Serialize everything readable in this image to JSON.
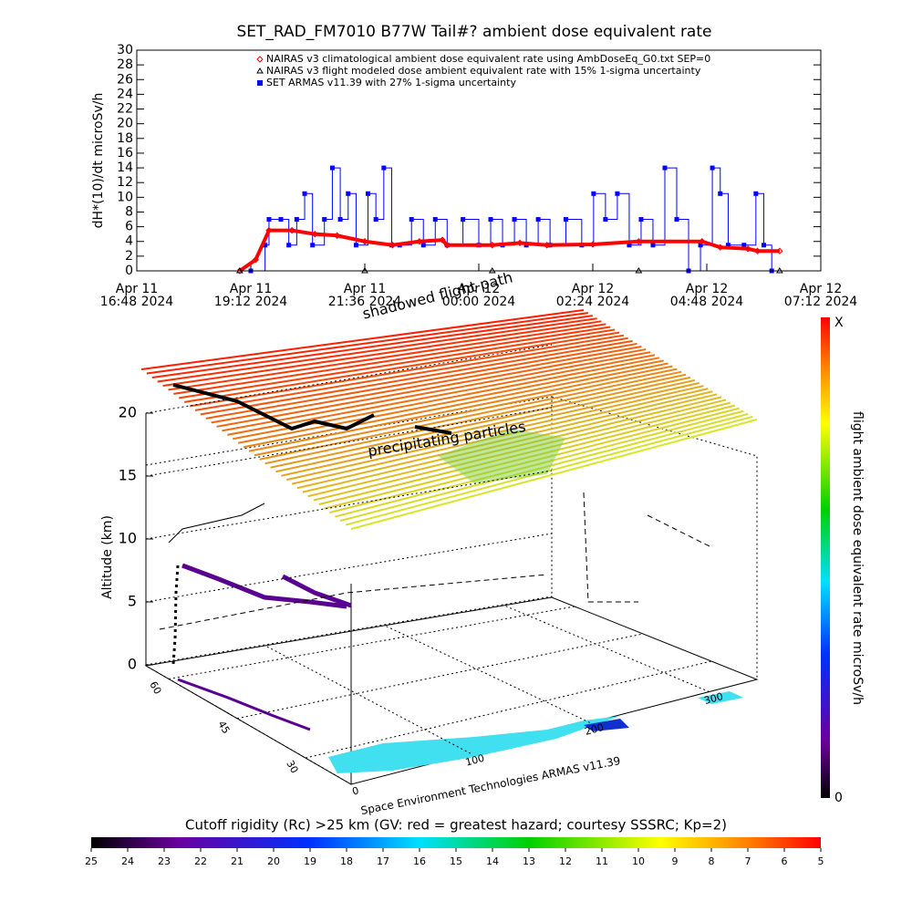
{
  "chart_data": [
    {
      "type": "line",
      "title": "SET_RAD_FM7010  B77W Tail#? ambient dose equivalent rate",
      "y_label": "dH*(10)/dt microSv/h",
      "ylim": [
        0,
        30
      ],
      "yticks": [
        0,
        2,
        4,
        6,
        8,
        10,
        12,
        14,
        16,
        18,
        20,
        22,
        24,
        26,
        28,
        30
      ],
      "xlim": [
        "2024-04-11 16:48",
        "2024-04-12 07:12"
      ],
      "xticks": [
        {
          "value": "2024-04-11 16:48",
          "label": [
            "Apr 11",
            "16:48 2024"
          ]
        },
        {
          "value": "2024-04-11 19:12",
          "label": [
            "Apr 11",
            "19:12 2024"
          ]
        },
        {
          "value": "2024-04-11 21:36",
          "label": [
            "Apr 11",
            "21:36 2024"
          ]
        },
        {
          "value": "2024-04-12 00:00",
          "label": [
            "Apr 12",
            "00:00 2024"
          ]
        },
        {
          "value": "2024-04-12 02:24",
          "label": [
            "Apr 12",
            "02:24 2024"
          ]
        },
        {
          "value": "2024-04-12 04:48",
          "label": [
            "Apr 12",
            "04:48 2024"
          ]
        },
        {
          "value": "2024-04-12 07:12",
          "label": [
            "Apr 12",
            "07:12 2024"
          ]
        }
      ],
      "series": [
        {
          "name": "NAIRAS v3 climatological ambient dose equivalent rate using AmbDoseEq_G0.txt SEP=0",
          "color": "#ff0000",
          "marker": "diamond",
          "x": [
            "2024-04-11 18:58",
            "2024-04-11 19:18",
            "2024-04-11 19:35",
            "2024-04-11 20:04",
            "2024-04-11 20:33",
            "2024-04-11 21:01",
            "2024-04-11 21:36",
            "2024-04-11 22:11",
            "2024-04-11 22:45",
            "2024-04-11 23:14",
            "2024-04-11 23:20",
            "2024-04-12 00:17",
            "2024-04-12 00:52",
            "2024-04-12 01:26",
            "2024-04-12 02:24",
            "2024-04-12 03:22",
            "2024-04-12 04:42",
            "2024-04-12 05:05",
            "2024-04-12 05:40",
            "2024-04-12 05:52",
            "2024-04-12 06:20"
          ],
          "values": [
            0,
            1.5,
            5.5,
            5.5,
            5,
            4.8,
            4,
            3.5,
            4,
            4.2,
            3.5,
            3.5,
            3.8,
            3.5,
            3.6,
            4,
            4,
            3.2,
            3,
            2.7,
            2.7
          ]
        },
        {
          "name": "NAIRAS v3 flight modeled dose ambient equivalent rate with 15% 1-sigma uncertainty",
          "color": "#000000",
          "marker": "triangle",
          "x": [
            "2024-04-11 18:58",
            "2024-04-11 21:36",
            "2024-04-12 00:17",
            "2024-04-12 03:22",
            "2024-04-12 06:20"
          ],
          "values": [
            0,
            0,
            0,
            0,
            0
          ]
        },
        {
          "name": "SET ARMAS v11.39 with 27% 1-sigma uncertainty",
          "color": "#0000ff",
          "marker": "square",
          "x": [
            "2024-04-11 19:12",
            "2024-04-11 19:30",
            "2024-04-11 19:35",
            "2024-04-11 19:50",
            "2024-04-11 20:00",
            "2024-04-11 20:10",
            "2024-04-11 20:20",
            "2024-04-11 20:30",
            "2024-04-11 20:45",
            "2024-04-11 20:55",
            "2024-04-11 21:05",
            "2024-04-11 21:15",
            "2024-04-11 21:25",
            "2024-04-11 21:40",
            "2024-04-11 21:50",
            "2024-04-11 22:00",
            "2024-04-11 22:10",
            "2024-04-11 22:20",
            "2024-04-11 22:35",
            "2024-04-11 22:50",
            "2024-04-11 23:05",
            "2024-04-11 23:20",
            "2024-04-11 23:40",
            "2024-04-12 00:00",
            "2024-04-12 00:15",
            "2024-04-12 00:30",
            "2024-04-12 00:45",
            "2024-04-12 01:00",
            "2024-04-12 01:15",
            "2024-04-12 01:30",
            "2024-04-12 01:50",
            "2024-04-12 02:10",
            "2024-04-12 02:25",
            "2024-04-12 02:40",
            "2024-04-12 02:55",
            "2024-04-12 03:10",
            "2024-04-12 03:25",
            "2024-04-12 03:40",
            "2024-04-12 03:55",
            "2024-04-12 04:10",
            "2024-04-12 04:25",
            "2024-04-12 04:40",
            "2024-04-12 04:55",
            "2024-04-12 05:05",
            "2024-04-12 05:15",
            "2024-04-12 05:35",
            "2024-04-12 05:50",
            "2024-04-12 06:00",
            "2024-04-12 06:10"
          ],
          "values": [
            0,
            3.5,
            7,
            7,
            3.5,
            7,
            10.5,
            3.5,
            7,
            14,
            7,
            10.5,
            3.5,
            10.5,
            7,
            14,
            3.5,
            3.5,
            7,
            3.5,
            7,
            3.5,
            7,
            3.5,
            7,
            3.5,
            7,
            3.5,
            7,
            3.5,
            7,
            3.5,
            10.5,
            7,
            10.5,
            3.5,
            7,
            3.5,
            14,
            7,
            0,
            3.5,
            14,
            10.5,
            3.5,
            3.5,
            10.5,
            3.5,
            0
          ]
        }
      ]
    },
    {
      "type": "surface3d",
      "z_label": "Altitude (km)",
      "zlim": [
        0,
        20
      ],
      "zticks": [
        0,
        5,
        10,
        15,
        20
      ],
      "latlim": [
        20,
        65
      ],
      "latticks": [
        30,
        45,
        60
      ],
      "lonlim": [
        0,
        340
      ],
      "lonticks": [
        0,
        100,
        200,
        300
      ],
      "annotations": [
        "precipitating particles",
        "shadowed flight path"
      ],
      "credit": "Space Environment Technologies ARMAS v11.39",
      "dose_colorbar": {
        "label": "flight ambient dose equivalent rate microSv/h",
        "max_label": "X",
        "ticks": [
          0
        ]
      },
      "rigidity_colorbar": {
        "label": "Cutoff rigidity (Rc) >25 km (GV: red = greatest hazard; courtesy SSSRC; Kp=2)",
        "ticks": [
          25,
          24,
          23,
          22,
          21,
          20,
          19,
          18,
          17,
          16,
          15,
          14,
          13,
          12,
          11,
          10,
          9,
          8,
          7,
          6,
          5
        ]
      }
    }
  ]
}
